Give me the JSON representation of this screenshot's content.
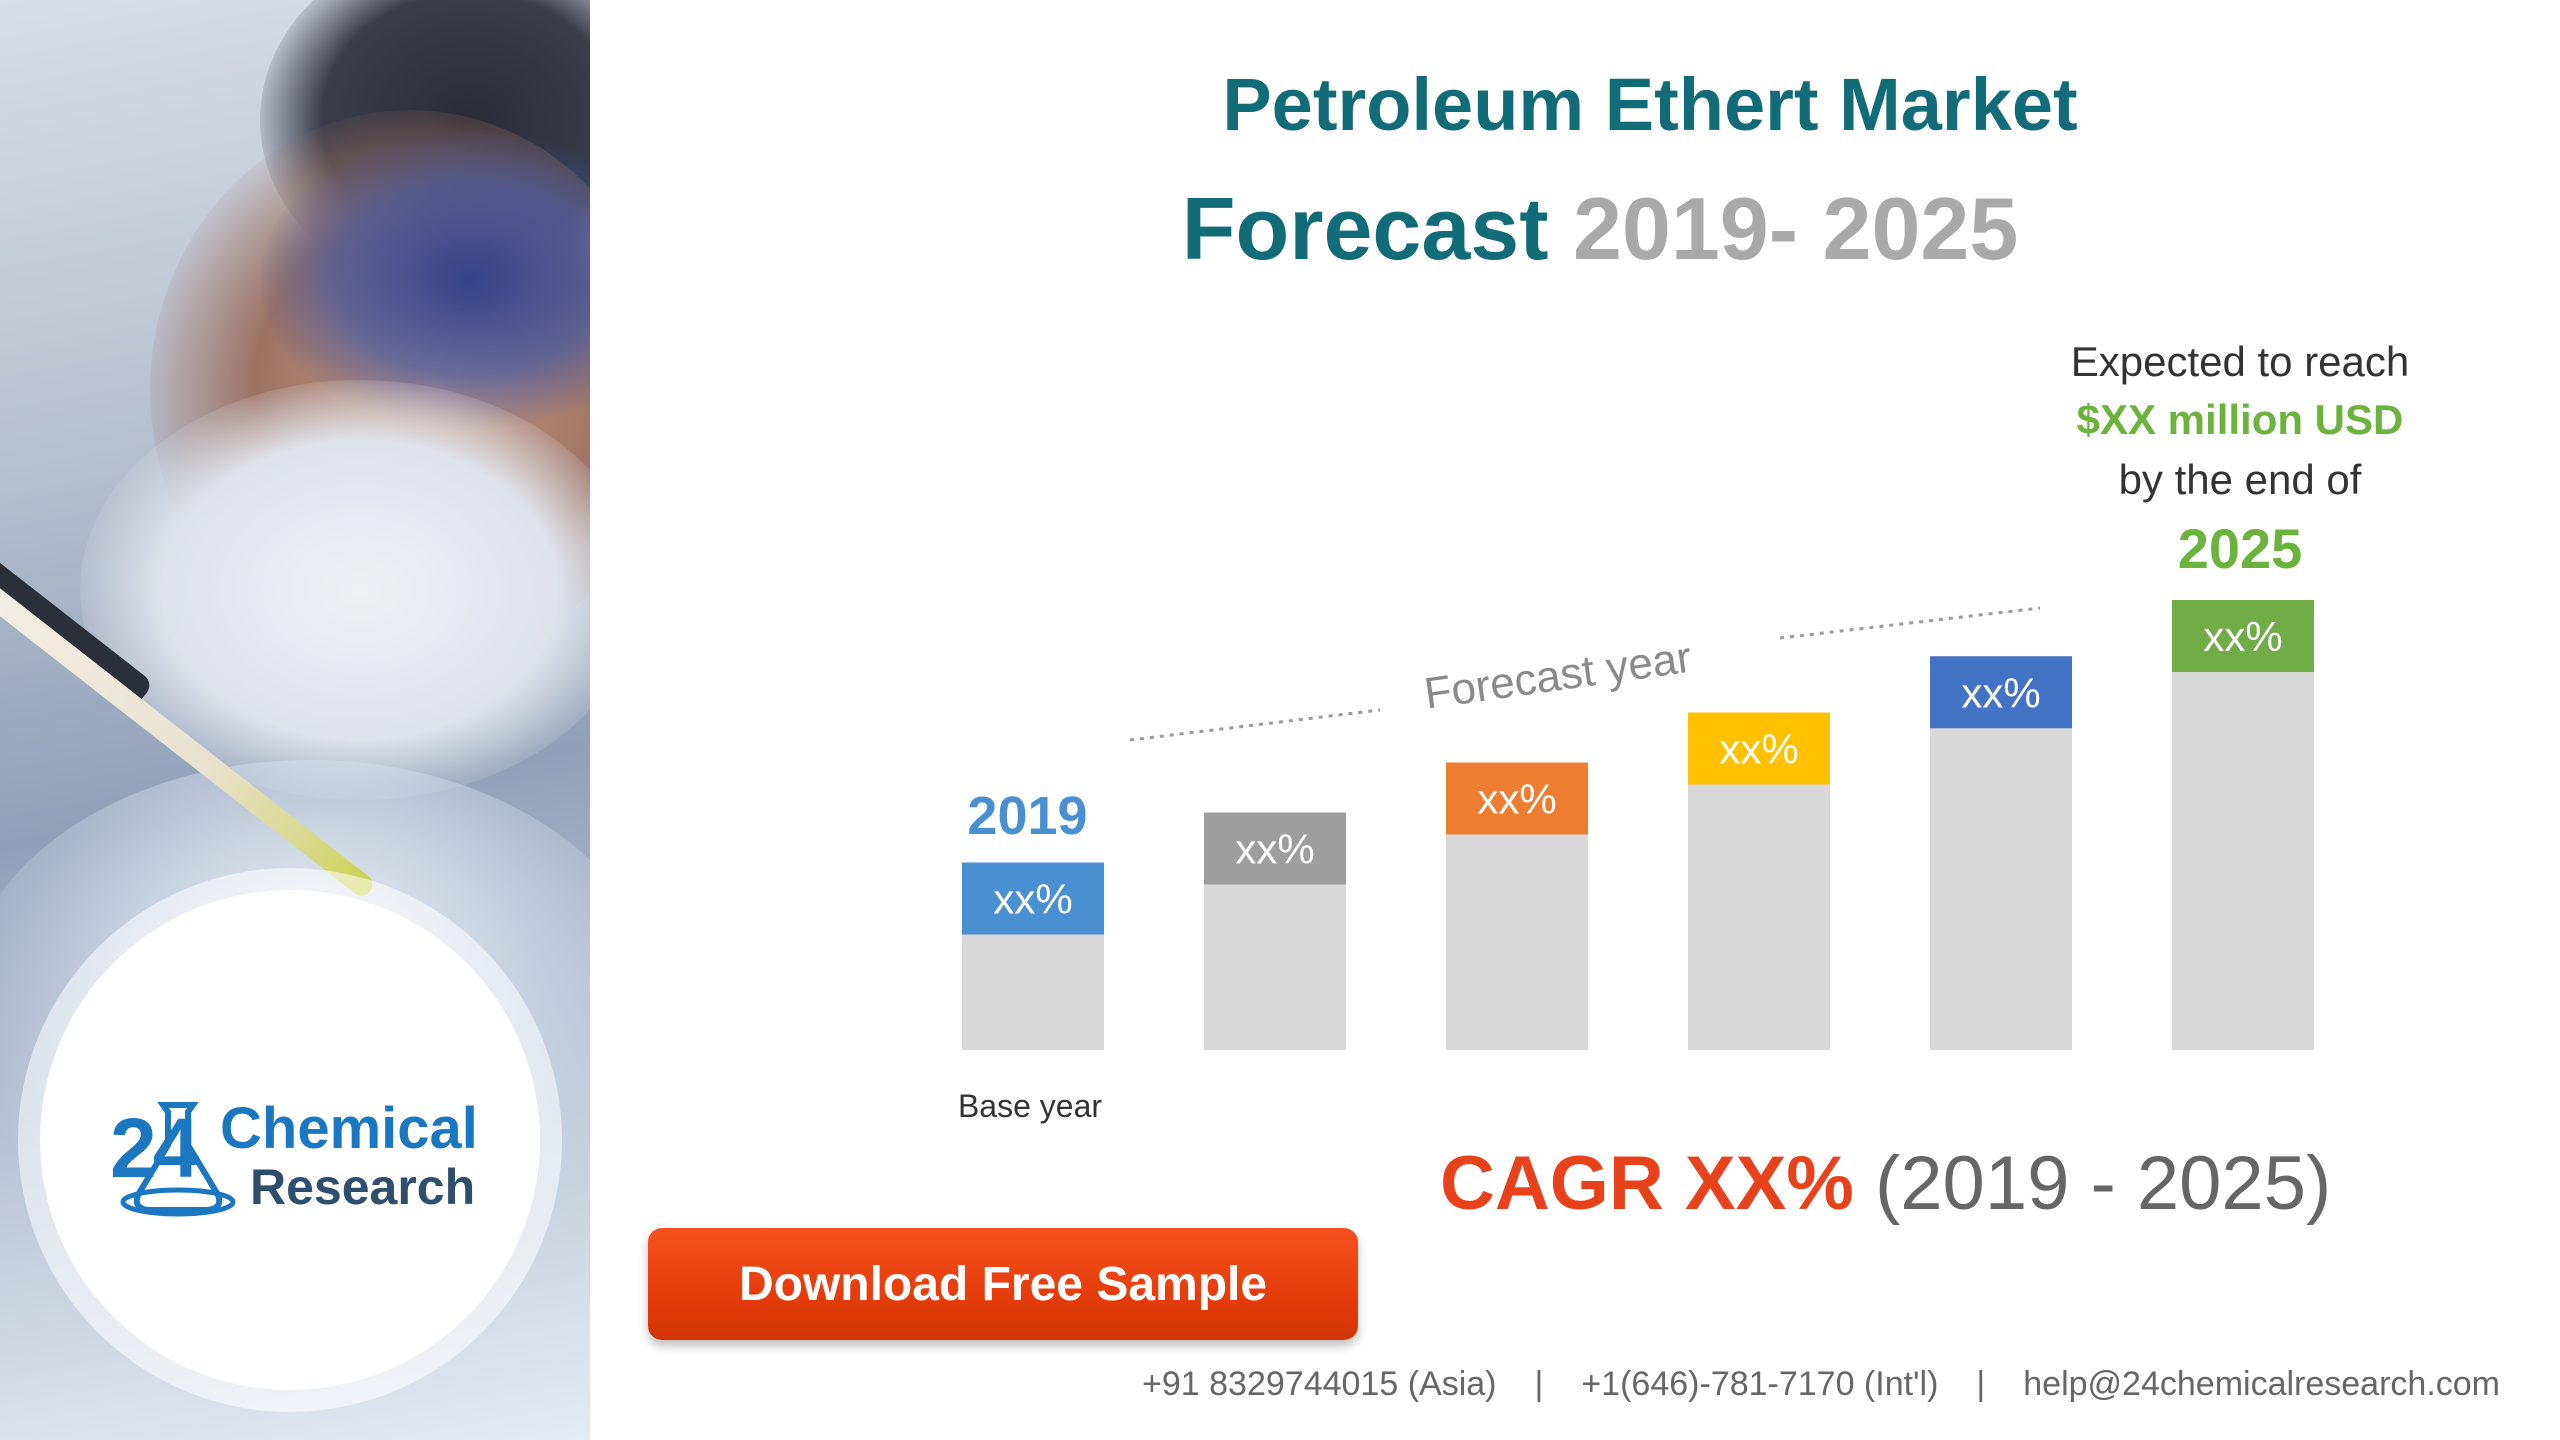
{
  "title": {
    "line1": "Petroleum Ethert Market",
    "line2_prefix": "Forecast",
    "line2_years": "2019- 2025"
  },
  "callout": {
    "line1": "Expected to reach",
    "line2": "$XX million USD",
    "line3": "by the end of",
    "line4": "2025"
  },
  "chart_data": {
    "type": "bar",
    "categories": [
      "2019",
      "",
      "",
      "",
      "",
      "2025"
    ],
    "values": [
      3.0,
      3.8,
      4.6,
      5.4,
      6.3,
      7.2
    ],
    "bar_labels": [
      "xx%",
      "xx%",
      "xx%",
      "xx%",
      "xx%",
      "xx%"
    ],
    "cap_colors": [
      "#4a90d0",
      "#9e9e9e",
      "#ed7d31",
      "#ffc000",
      "#4472c4",
      "#70ad47"
    ],
    "bar_color": "#d9d9d9",
    "annotations": {
      "first_bar": "2019",
      "first_bar_caption": "Base year",
      "forecast": "Forecast year"
    },
    "ylim": [
      0,
      8
    ],
    "grid": false,
    "legend": "none"
  },
  "cagr": {
    "main": "CAGR XX%",
    "years": "(2019 - 2025)"
  },
  "button": {
    "download_label": "Download Free Sample"
  },
  "logo": {
    "number": "24",
    "line1": "Chemical",
    "line2": "Research"
  },
  "footer": {
    "phone_asia": "+91 8329744015 (Asia)",
    "phone_intl": "+1(646)-781-7170 (Int'l)",
    "email": "help@24chemicalresearch.com",
    "separator": "|"
  }
}
